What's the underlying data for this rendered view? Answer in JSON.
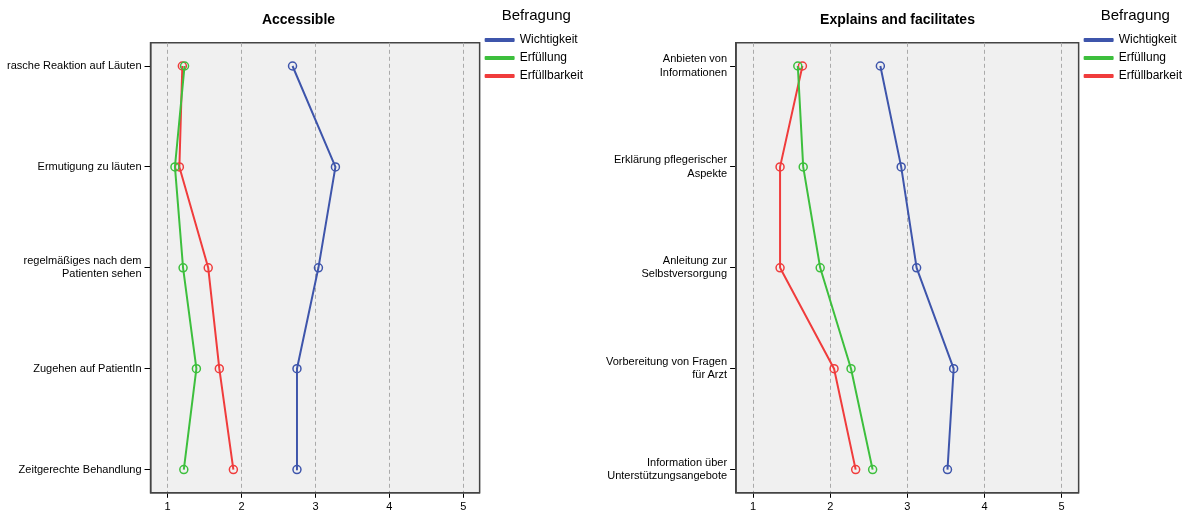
{
  "chart_data": [
    {
      "type": "line",
      "orientation": "horizontal",
      "title": "Accessible",
      "legend_title": "Befragung",
      "legend": "top right",
      "grid": "x",
      "marker": "circle",
      "line_style": "solid",
      "categories": [
        "rasche Reaktion auf Läuten",
        "Ermutigung zu läuten",
        "regelmäßiges nach dem Patienten sehen",
        "Zugehen auf PatientIn",
        "Zeitgerechte Behandlung"
      ],
      "xlim": [
        0.77,
        5.22
      ],
      "xticks": [
        1,
        2,
        3,
        4,
        5
      ],
      "series": [
        {
          "name": "Wichtigkeit",
          "color": "#3e55ab",
          "values": [
            2.69,
            3.27,
            3.04,
            2.75,
            2.75
          ]
        },
        {
          "name": "Erfüllung",
          "color": "#3dbf3d",
          "values": [
            1.23,
            1.1,
            1.21,
            1.39,
            1.22
          ]
        },
        {
          "name": "Erfüllbarkeit",
          "color": "#f03c3c",
          "values": [
            1.2,
            1.16,
            1.55,
            1.7,
            1.89
          ]
        }
      ]
    },
    {
      "type": "line",
      "orientation": "horizontal",
      "title": "Explains and facilitates",
      "legend_title": "Befragung",
      "legend": "top right",
      "grid": "x",
      "marker": "circle",
      "line_style": "solid",
      "categories": [
        "Anbieten von Informationen",
        "Erklärung pflegerischer Aspekte",
        "Anleitung zur Selbstversorgung",
        "Vorbereitung von Fragen für Arzt",
        "Information über Unterstützungsangebote"
      ],
      "xlim": [
        0.78,
        5.22
      ],
      "xticks": [
        1,
        2,
        3,
        4,
        5
      ],
      "series": [
        {
          "name": "Wichtigkeit",
          "color": "#3e55ab",
          "values": [
            2.65,
            2.92,
            3.12,
            3.6,
            3.52
          ]
        },
        {
          "name": "Erfüllung",
          "color": "#3dbf3d",
          "values": [
            1.58,
            1.65,
            1.87,
            2.27,
            2.55
          ]
        },
        {
          "name": "Erfüllbarkeit",
          "color": "#f03c3c",
          "values": [
            1.64,
            1.35,
            1.35,
            2.05,
            2.33
          ]
        }
      ]
    }
  ]
}
